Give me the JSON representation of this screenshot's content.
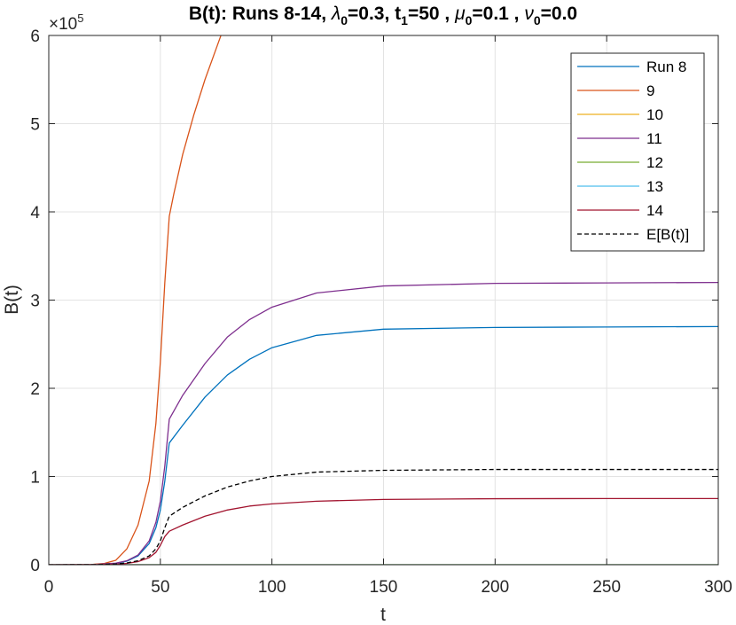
{
  "chart_data": {
    "type": "line",
    "title": "B(t): Runs 8-14, λ0=0.3, t1=50 , μ0=0.1 , ν0=0.0",
    "title_parts": {
      "prefix": "B(t): Runs 8-14, ",
      "lambda": "λ",
      "lambda_sub": "0",
      "lambda_val": "=0.3,  t",
      "t_sub": "1",
      "t_val": "=50 , ",
      "mu": "μ",
      "mu_sub": "0",
      "mu_val": "=0.1 , ",
      "nu": "ν",
      "nu_sub": "0",
      "nu_val": "=0.0"
    },
    "xlabel": "t",
    "ylabel": "B(t)",
    "y_exponent_label": "×10",
    "y_exponent": "5",
    "xlim": [
      0,
      300
    ],
    "ylim": [
      0,
      6
    ],
    "x_ticks": [
      "0",
      "50",
      "100",
      "150",
      "200",
      "250",
      "300"
    ],
    "y_ticks": [
      "0",
      "1",
      "2",
      "3",
      "4",
      "5",
      "6"
    ],
    "grid": true,
    "legend_position": "top-right",
    "series": [
      {
        "name": "Run 8",
        "color": "#0072BD",
        "dash": false,
        "x": [
          0,
          20,
          30,
          35,
          40,
          45,
          48,
          50,
          52,
          54,
          60,
          70,
          80,
          90,
          100,
          120,
          150,
          200,
          250,
          300
        ],
        "y": [
          0,
          0.002,
          0.015,
          0.04,
          0.1,
          0.24,
          0.42,
          0.62,
          0.95,
          1.38,
          1.58,
          1.9,
          2.15,
          2.33,
          2.46,
          2.6,
          2.67,
          2.69,
          2.695,
          2.7
        ]
      },
      {
        "name": "9",
        "color": "#D95319",
        "dash": false,
        "x": [
          0,
          20,
          25,
          30,
          35,
          40,
          45,
          48,
          50,
          52,
          54,
          56,
          60,
          65,
          70,
          75,
          80
        ],
        "y": [
          0,
          0.005,
          0.015,
          0.05,
          0.18,
          0.45,
          0.95,
          1.6,
          2.3,
          3.2,
          3.95,
          4.2,
          4.65,
          5.1,
          5.5,
          5.85,
          6.2
        ]
      },
      {
        "name": "10",
        "color": "#EDB120",
        "dash": false,
        "x": [
          0,
          300
        ],
        "y": [
          0,
          0
        ]
      },
      {
        "name": "11",
        "color": "#7E2F8E",
        "dash": false,
        "x": [
          0,
          20,
          30,
          35,
          40,
          45,
          48,
          50,
          52,
          54,
          60,
          70,
          80,
          90,
          100,
          120,
          150,
          200,
          250,
          300
        ],
        "y": [
          0,
          0.002,
          0.017,
          0.045,
          0.11,
          0.27,
          0.48,
          0.72,
          1.12,
          1.65,
          1.92,
          2.28,
          2.58,
          2.78,
          2.92,
          3.08,
          3.16,
          3.19,
          3.195,
          3.2
        ]
      },
      {
        "name": "12",
        "color": "#77AC30",
        "dash": false,
        "x": [
          0,
          300
        ],
        "y": [
          0,
          0
        ]
      },
      {
        "name": "13",
        "color": "#4DBEEE",
        "dash": false,
        "x": [
          0,
          300
        ],
        "y": [
          0,
          0
        ]
      },
      {
        "name": "14",
        "color": "#A2142F",
        "dash": false,
        "x": [
          0,
          20,
          30,
          35,
          40,
          45,
          48,
          50,
          52,
          54,
          60,
          70,
          80,
          90,
          100,
          120,
          150,
          200,
          250,
          300
        ],
        "y": [
          0,
          0.001,
          0.006,
          0.015,
          0.035,
          0.08,
          0.14,
          0.22,
          0.32,
          0.38,
          0.45,
          0.55,
          0.62,
          0.665,
          0.69,
          0.72,
          0.74,
          0.748,
          0.75,
          0.75
        ]
      },
      {
        "name": "E[B(t)]",
        "color": "#000000",
        "dash": true,
        "x": [
          0,
          20,
          30,
          35,
          40,
          45,
          48,
          50,
          52,
          54,
          60,
          70,
          80,
          90,
          100,
          120,
          150,
          200,
          250,
          300
        ],
        "y": [
          0,
          0.001,
          0.008,
          0.02,
          0.045,
          0.1,
          0.18,
          0.27,
          0.42,
          0.55,
          0.65,
          0.78,
          0.88,
          0.95,
          1.0,
          1.05,
          1.07,
          1.08,
          1.08,
          1.08
        ]
      }
    ]
  }
}
